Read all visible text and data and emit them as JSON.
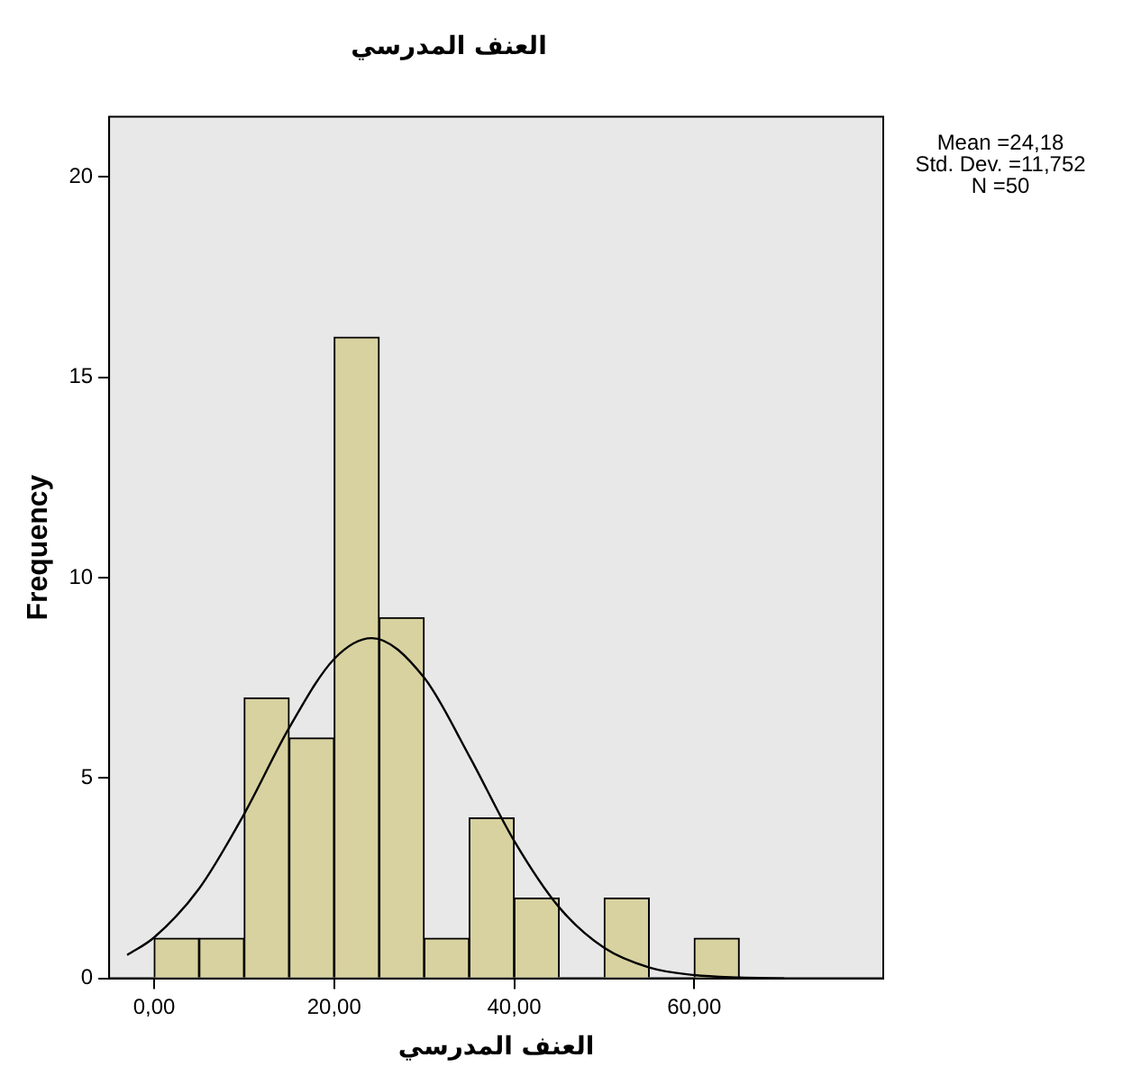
{
  "chart_data": {
    "type": "histogram",
    "title": "العنف المدرسي",
    "xlabel": "العنف المدرسي",
    "ylabel": "Frequency",
    "bins": [
      0,
      5,
      10,
      15,
      20,
      25,
      30,
      35,
      40,
      45,
      50,
      55,
      60,
      65
    ],
    "values": [
      1,
      1,
      7,
      6,
      16,
      9,
      1,
      4,
      2,
      0,
      2,
      0,
      1
    ],
    "color": "#d8d2a0",
    "series": [
      {
        "type": "line",
        "color": "#000000",
        "x": [
          -3,
          0,
          5,
          10,
          15,
          20,
          24.18,
          30,
          35,
          40,
          45,
          50,
          55,
          60,
          65,
          70
        ],
        "values": [
          0.58,
          1.02,
          2.24,
          4.1,
          6.25,
          7.97,
          8.49,
          7.5,
          5.55,
          3.43,
          1.77,
          0.76,
          0.27,
          0.08,
          0.02,
          0
        ]
      }
    ],
    "xlim": [
      -5,
      81
    ],
    "ylim": [
      0,
      21.5
    ],
    "xticks": [
      {
        "value": 0,
        "label": "0,00"
      },
      {
        "value": 20,
        "label": "20,00"
      },
      {
        "value": 40,
        "label": "40,00"
      },
      {
        "value": 60,
        "label": "60,00"
      }
    ],
    "yticks": [
      0,
      5,
      10,
      15,
      20
    ],
    "annotations": [
      "Mean =24,18",
      "Std. Dev. =11,752",
      "N =50"
    ],
    "grid": false,
    "legend": false
  }
}
